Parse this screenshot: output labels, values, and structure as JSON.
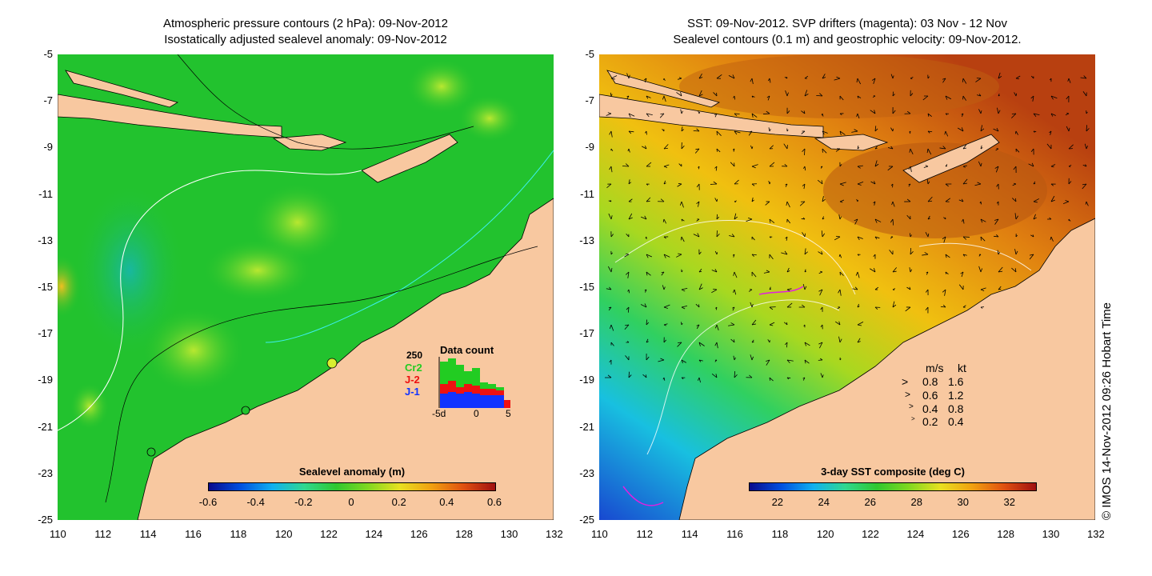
{
  "left_panel": {
    "title_line1": "Atmospheric pressure contours (2 hPa): 09-Nov-2012",
    "title_line2": "Isostatically adjusted sealevel anomaly: 09-Nov-2012",
    "colorbar_title": "Sealevel anomaly (m)",
    "colorbar_ticks": [
      "-0.6",
      "-0.4",
      "-0.2",
      "0",
      "0.2",
      "0.4",
      "0.6"
    ],
    "inset": {
      "title": "Data count",
      "max_label": "250",
      "series_labels": [
        "Cr2",
        "J-2",
        "J-1"
      ],
      "series_colors": [
        "#22cc22",
        "#ee1111",
        "#1133ff"
      ],
      "x_ticks": [
        "-5d",
        "0",
        "5"
      ]
    }
  },
  "right_panel": {
    "title_line1": "SST: 09-Nov-2012. SVP drifters (magenta): 03 Nov - 12 Nov",
    "title_line2": "Sealevel contours (0.1 m) and geostrophic velocity: 09-Nov-2012.",
    "colorbar_title": "3-day SST composite (deg C)",
    "colorbar_ticks": [
      "22",
      "24",
      "26",
      "28",
      "30",
      "32"
    ],
    "velocity_legend": {
      "header_ms": "m/s",
      "header_kt": "kt",
      "rows": [
        {
          "ms": "0.8",
          "kt": "1.6"
        },
        {
          "ms": "0.6",
          "kt": "1.2"
        },
        {
          "ms": "0.4",
          "kt": "0.8"
        },
        {
          "ms": "0.2",
          "kt": "0.4"
        }
      ]
    }
  },
  "axes": {
    "lat_ticks": [
      "-5",
      "-7",
      "-9",
      "-11",
      "-13",
      "-15",
      "-17",
      "-19",
      "-21",
      "-23",
      "-25"
    ],
    "lon_ticks": [
      "110",
      "112",
      "114",
      "116",
      "118",
      "120",
      "122",
      "124",
      "126",
      "128",
      "130",
      "132"
    ]
  },
  "copyright": "© IMOS 14-Nov-2012 09:26 Hobart Time",
  "colors": {
    "land": "#f8c8a0",
    "ocean_sla": "#22c22e",
    "sst_warm": "#e08a10",
    "sst_cool": "#22b4e0"
  }
}
